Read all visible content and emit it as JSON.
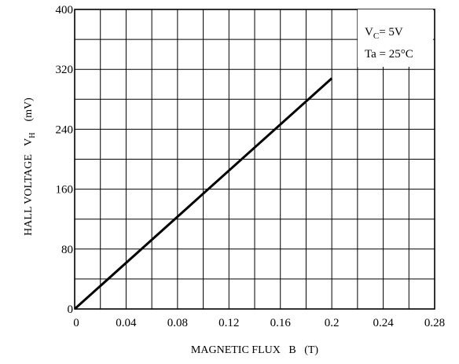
{
  "chart_data": {
    "type": "line",
    "xlabel": "MAGNETIC FLUX   B   (T)",
    "ylabel_main": "HALL VOLTAGE   V",
    "ylabel_sub": "H",
    "ylabel_unit": "(mV)",
    "xlim": [
      0,
      0.28
    ],
    "ylim": [
      0,
      400
    ],
    "x_ticks": [
      "0",
      "0.04",
      "0.08",
      "0.12",
      "0.16",
      "0.2",
      "0.24",
      "0.28"
    ],
    "y_ticks": [
      "0",
      "80",
      "160",
      "240",
      "320",
      "400"
    ],
    "grid": true,
    "series": [
      {
        "x": [
          0,
          0.2
        ],
        "y": [
          0,
          308
        ]
      }
    ],
    "conditions": {
      "vc_main": "V",
      "vc_sub": "C",
      "vc_value": "= 5V",
      "ta": "Ta = 25°C"
    }
  }
}
